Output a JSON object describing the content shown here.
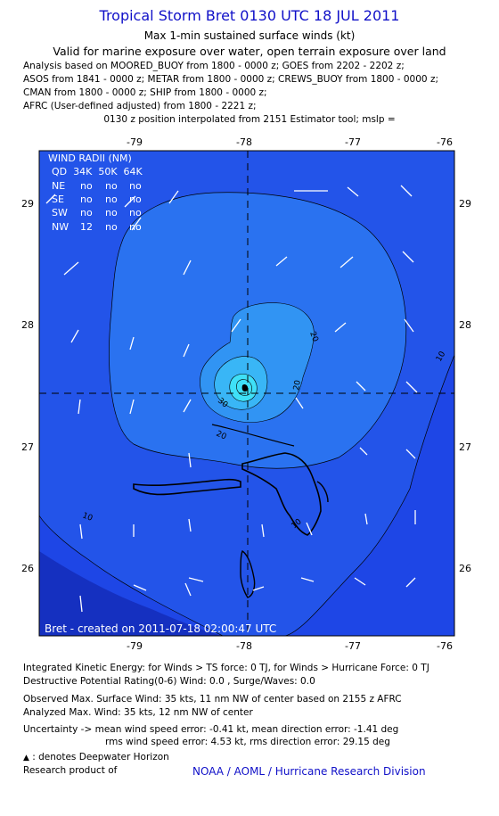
{
  "header": {
    "title": "Tropical Storm Bret 0130 UTC 18 JUL 2011",
    "subtitle1": "Max 1-min sustained surface winds (kt)",
    "subtitle2": "Valid for marine exposure over water, open terrain exposure over land",
    "analysis_lines": [
      "Analysis based on MOORED_BUOY from 1800 - 0000 z; GOES from 2202 - 2202 z;",
      "ASOS from 1841 - 0000 z; METAR from 1800 - 0000 z; CREWS_BUOY from 1800 - 0000 z;",
      "CMAN from 1800 - 0000 z; SHIP from 1800 - 0000 z;",
      "AFRC (User-defined adjusted) from 1800 - 2221 z;"
    ],
    "position_note": "0130 z position interpolated from 2151 Estimator tool; mslp ="
  },
  "map": {
    "lon_ticks": [
      "-79",
      "-78",
      "-77",
      "-76"
    ],
    "lat_ticks": [
      "29",
      "28",
      "27",
      "26"
    ],
    "lon_range": [
      -79.75,
      -75.95
    ],
    "lat_range": [
      25.45,
      29.47
    ],
    "center": {
      "lon": -77.85,
      "lat": 27.44
    },
    "contour_labels": [
      "20",
      "20",
      "30",
      "20",
      "10",
      "10",
      "10"
    ],
    "credit": "Bret - created on 2011-07-18 02:00:47 UTC",
    "colors": {
      "ocean_10": "#1e46e6",
      "band_10_20": "#2b6ff0",
      "band_20_30": "#2f93f3",
      "band_30_40": "#37b7f5",
      "core": "#3ee0f7",
      "open_sea": "#1333cc",
      "land": "#000000"
    }
  },
  "wind_radii": {
    "header": "WIND RADII (NM)",
    "columns": "QD  34K  50K  64K",
    "rows": [
      {
        "qd": "NE",
        "k34": "no",
        "k50": "no",
        "k64": "no"
      },
      {
        "qd": "SE",
        "k34": "no",
        "k50": "no",
        "k64": "no"
      },
      {
        "qd": "SW",
        "k34": "no",
        "k50": "no",
        "k64": "no"
      },
      {
        "qd": "NW",
        "k34": "12",
        "k50": "no",
        "k64": "no"
      }
    ]
  },
  "footer": {
    "ike": "Integrated Kinetic Energy:  for Winds > TS force: 0 TJ,  for Winds > Hurricane Force: 0 TJ",
    "dpr": "Destructive Potential Rating(0-6)   Wind: 0.0 , Surge/Waves: 0.0",
    "observed": "Observed Max. Surface Wind: 35 kts, 11 nm NW of center based on 2155 z AFRC",
    "analyzed": "Analyzed Max. Wind: 35 kts, 12 nm NW of center",
    "uncertainty1": "Uncertainty -> mean wind speed error:  -0.41 kt,   mean direction error:  -1.41 deg",
    "uncertainty2": "rms wind speed error: 4.53 kt,   rms direction error: 29.15 deg",
    "deepwater": ": denotes Deepwater Horizon",
    "research": "Research product of",
    "org": "NOAA / AOML / Hurricane Research Division"
  }
}
